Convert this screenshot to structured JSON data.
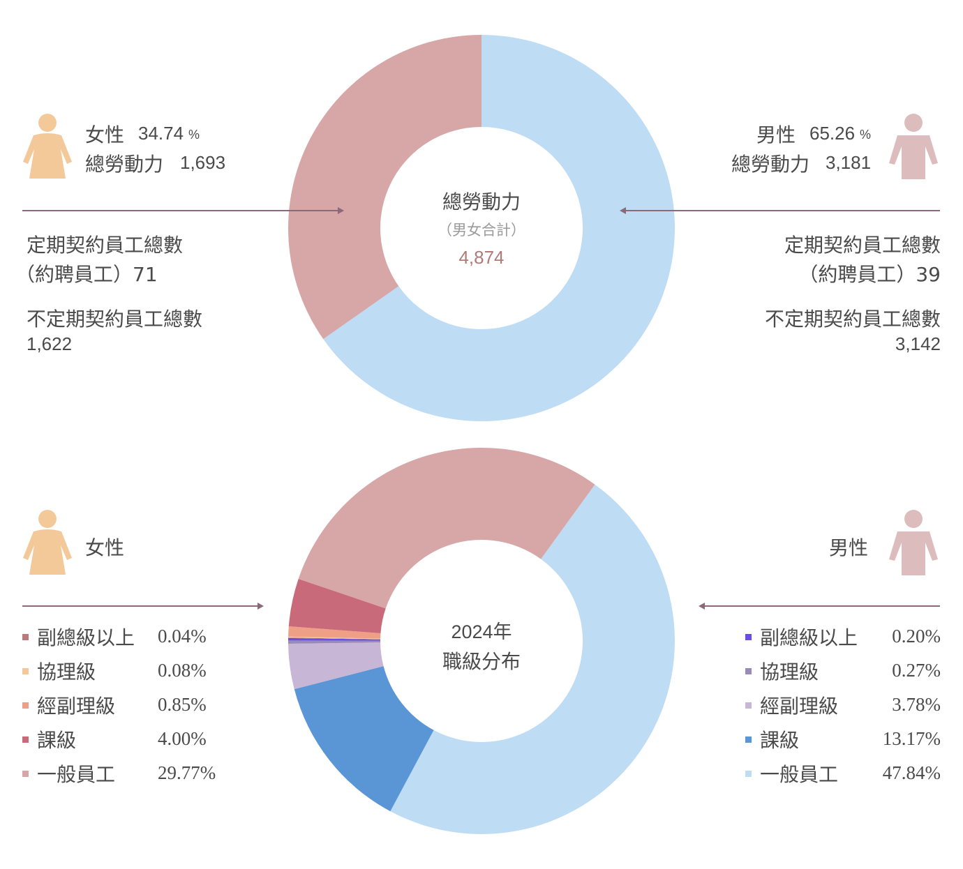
{
  "top": {
    "center_title": "總勞動力",
    "center_sub": "（男女合計）",
    "center_total": "4,874",
    "female": {
      "label": "女性",
      "pct": "34.74",
      "pct_unit": "%",
      "workforce_label": "總勞動力",
      "workforce": "1,693",
      "fixed_label": "定期契約員工總數",
      "fixed_sub": "（約聘員工）71",
      "indef_label": "不定期契約員工總數",
      "indef": "1,622"
    },
    "male": {
      "label": "男性",
      "pct": "65.26",
      "pct_unit": "%",
      "workforce_label": "總勞動力",
      "workforce": "3,181",
      "fixed_label": "定期契約員工總數",
      "fixed_sub": "（約聘員工）39",
      "indef_label": "不定期契約員工總數",
      "indef": "3,142"
    }
  },
  "bottom": {
    "center_year": "2024年",
    "center_title": "職級分布",
    "female_label": "女性",
    "male_label": "男性"
  },
  "colors": {
    "female_icon": "#f4c99a",
    "male_icon": "#dcbcbc",
    "female_total": "#d7a6a7",
    "male_total": "#bedcf4",
    "accent_total": "#b07a78"
  },
  "chart_data": [
    {
      "type": "donut",
      "title": "總勞動力",
      "categories": [
        "男性",
        "女性"
      ],
      "values": [
        65.26,
        34.74
      ],
      "colors": [
        "#bedcf4",
        "#d7a6a7"
      ]
    },
    {
      "type": "donut",
      "title": "2024年 職級分布",
      "series": [
        {
          "name": "男性",
          "categories": [
            "一般員工",
            "課級",
            "經副理級",
            "協理級",
            "副總級以上"
          ],
          "values": [
            47.84,
            13.17,
            3.78,
            0.27,
            0.2
          ],
          "colors": [
            "#bedcf4",
            "#5a96d6",
            "#c8b6d6",
            "#9a8ab8",
            "#6a4ee0"
          ]
        },
        {
          "name": "女性",
          "categories": [
            "副總級以上",
            "協理級",
            "經副理級",
            "課級",
            "一般員工"
          ],
          "values": [
            0.04,
            0.08,
            0.85,
            4.0,
            29.77
          ],
          "colors": [
            "#b87a7a",
            "#f4c99a",
            "#ee9f86",
            "#c96a7a",
            "#d7a6a7"
          ]
        }
      ]
    }
  ]
}
